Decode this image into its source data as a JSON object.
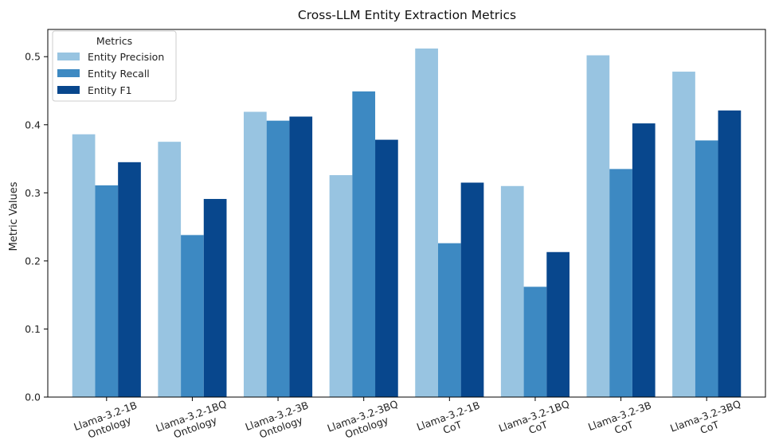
{
  "chart_data": {
    "type": "bar",
    "title": "Cross-LLM Entity Extraction Metrics",
    "xlabel": "",
    "ylabel": "Metric Values",
    "ylim": [
      0,
      0.54
    ],
    "yticks": [
      0.0,
      0.1,
      0.2,
      0.3,
      0.4,
      0.5
    ],
    "ytick_labels": [
      "0.0",
      "0.1",
      "0.2",
      "0.3",
      "0.4",
      "0.5"
    ],
    "grid": false,
    "categories": [
      [
        "Llama-3.2-1B",
        "Ontology"
      ],
      [
        "Llama-3.2-1BQ",
        "Ontology"
      ],
      [
        "Llama-3.2-3B",
        "Ontology"
      ],
      [
        "Llama-3.2-3BQ",
        "Ontology"
      ],
      [
        "Llama-3.2-1B",
        "CoT"
      ],
      [
        "Llama-3.2-1BQ",
        "CoT"
      ],
      [
        "Llama-3.2-3B",
        "CoT"
      ],
      [
        "Llama-3.2-3BQ",
        "CoT"
      ]
    ],
    "legend": {
      "title": "Metrics",
      "placement": "top-left"
    },
    "series": [
      {
        "name": "Entity Precision",
        "color": "#98c4e1",
        "values": [
          0.386,
          0.375,
          0.419,
          0.326,
          0.512,
          0.31,
          0.502,
          0.478
        ]
      },
      {
        "name": "Entity Recall",
        "color": "#3d89c2",
        "values": [
          0.311,
          0.238,
          0.406,
          0.449,
          0.226,
          0.162,
          0.335,
          0.377
        ]
      },
      {
        "name": "Entity F1",
        "color": "#08478d",
        "values": [
          0.345,
          0.291,
          0.412,
          0.378,
          0.315,
          0.213,
          0.402,
          0.421
        ]
      }
    ]
  }
}
